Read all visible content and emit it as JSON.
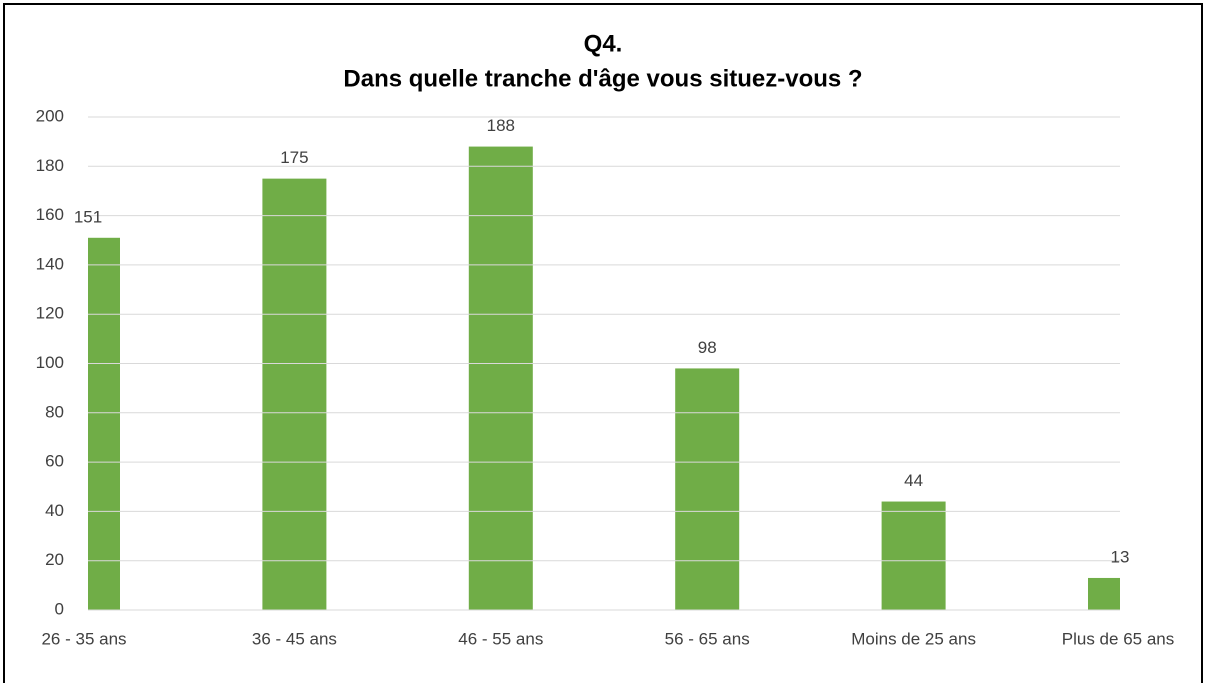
{
  "chart_data": {
    "type": "bar",
    "title": [
      "Q4.",
      "Dans quelle tranche d'âge vous situez-vous ?"
    ],
    "categories": [
      "26 - 35 ans",
      "36 - 45 ans",
      "46 - 55 ans",
      "56 - 65 ans",
      "Moins de 25 ans",
      "Plus de 65 ans"
    ],
    "values": [
      151,
      175,
      188,
      98,
      44,
      13
    ],
    "color": "#70ad47",
    "ylim": [
      0,
      200
    ],
    "yticks": [
      0,
      20,
      40,
      60,
      80,
      100,
      120,
      140,
      160,
      180,
      200
    ],
    "grid": true
  }
}
